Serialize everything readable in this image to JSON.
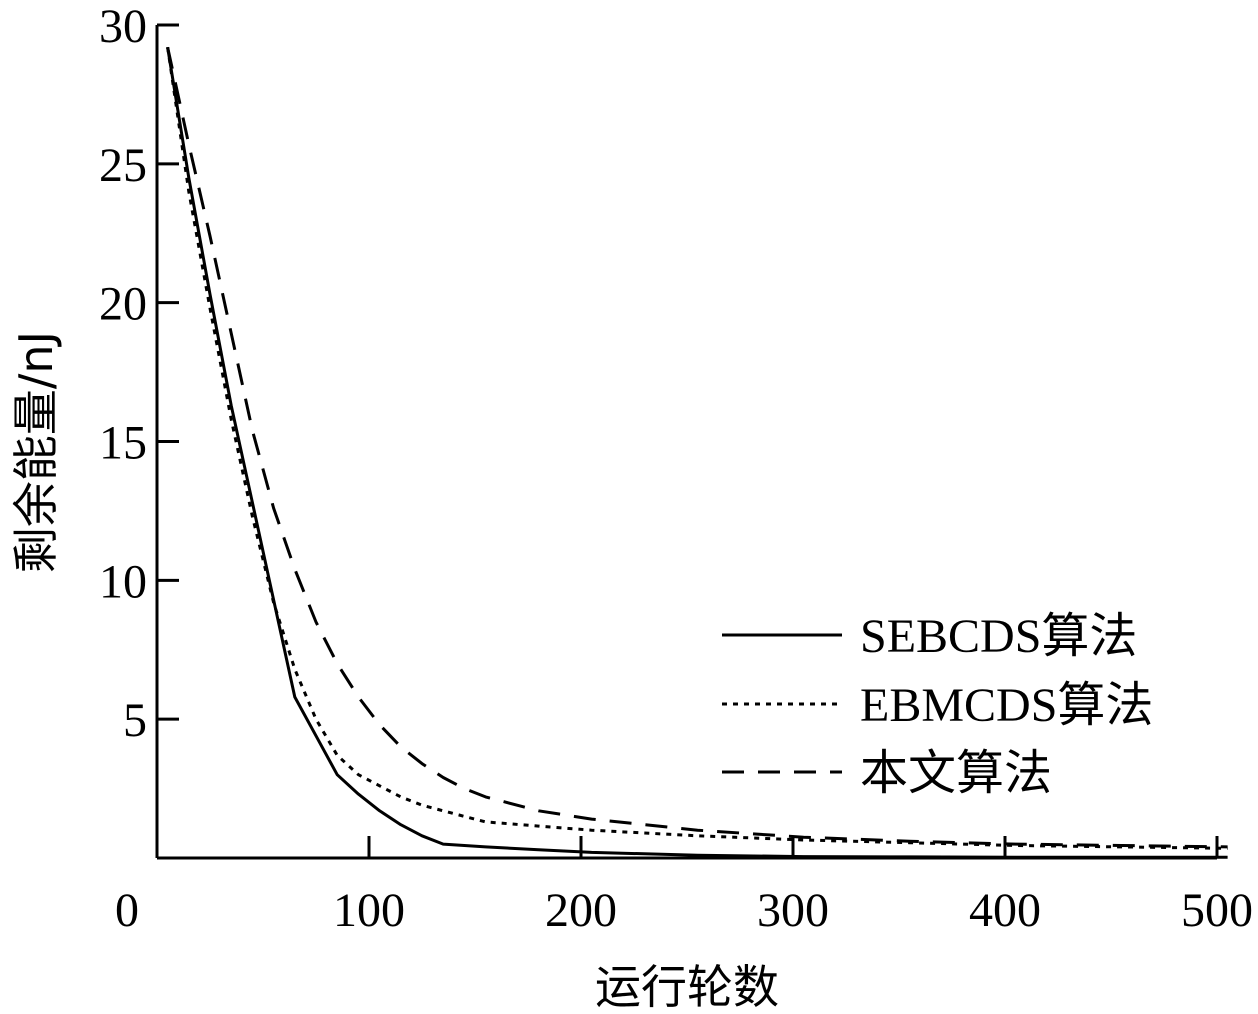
{
  "chart_data": {
    "type": "line",
    "xlabel": "运行轮数",
    "ylabel": "剩余能量/nJ",
    "xlim": [
      0,
      500
    ],
    "ylim": [
      0,
      30
    ],
    "x_ticks": [
      "0",
      "100",
      "200",
      "300",
      "400",
      "500"
    ],
    "y_ticks": [
      "5",
      "10",
      "15",
      "20",
      "25",
      "30"
    ],
    "grid": false,
    "legend_position": "center-right",
    "series": [
      {
        "name": "SEBCDS算法",
        "style": "solid",
        "color": "#000000",
        "x": [
          0,
          10,
          20,
          30,
          40,
          50,
          60,
          70,
          80,
          90,
          100,
          110,
          120,
          130,
          140,
          150,
          175,
          200,
          250,
          300,
          350,
          400,
          450,
          500
        ],
        "y": [
          29.2,
          24.5,
          20.3,
          16.3,
          12.8,
          9.3,
          5.8,
          4.4,
          3.0,
          2.3,
          1.7,
          1.2,
          0.8,
          0.5,
          0.45,
          0.4,
          0.3,
          0.2,
          0.1,
          0.05,
          0.04,
          0.03,
          0.03,
          0.03
        ]
      },
      {
        "name": "EBMCDS算法",
        "style": "dotted",
        "color": "#000000",
        "x": [
          0,
          10,
          20,
          30,
          40,
          50,
          60,
          70,
          80,
          90,
          100,
          110,
          120,
          130,
          140,
          150,
          175,
          200,
          250,
          300,
          350,
          400,
          450,
          500
        ],
        "y": [
          29.2,
          24.0,
          19.8,
          15.8,
          12.3,
          9.2,
          6.8,
          5.0,
          3.7,
          3.0,
          2.6,
          2.2,
          1.9,
          1.7,
          1.5,
          1.3,
          1.15,
          1.0,
          0.8,
          0.65,
          0.55,
          0.45,
          0.4,
          0.35
        ]
      },
      {
        "name": "本文算法",
        "style": "dashed",
        "color": "#000000",
        "x": [
          0,
          10,
          20,
          30,
          40,
          50,
          60,
          70,
          80,
          90,
          100,
          110,
          120,
          130,
          140,
          150,
          175,
          200,
          250,
          300,
          350,
          400,
          450,
          500
        ],
        "y": [
          29.2,
          25.7,
          22.4,
          18.9,
          15.4,
          12.6,
          10.4,
          8.5,
          7.0,
          5.8,
          4.8,
          4.0,
          3.4,
          2.9,
          2.5,
          2.2,
          1.7,
          1.4,
          1.0,
          0.75,
          0.6,
          0.5,
          0.45,
          0.4
        ]
      }
    ]
  }
}
